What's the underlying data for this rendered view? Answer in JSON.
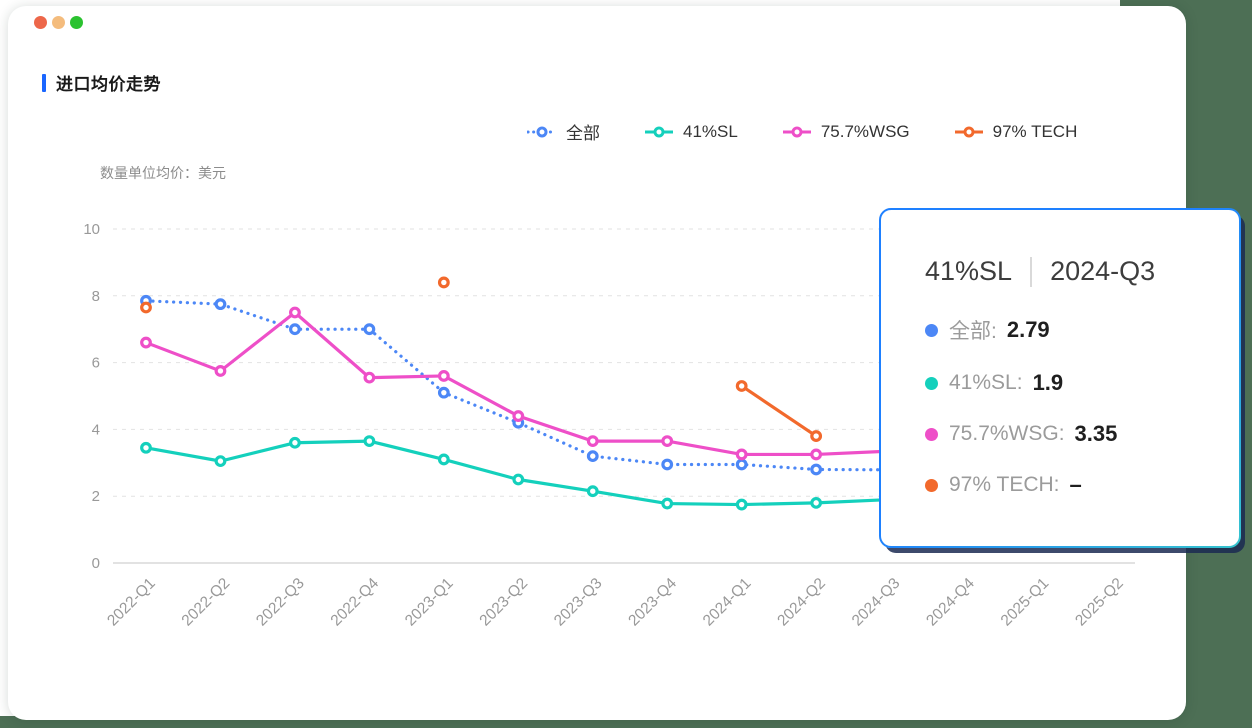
{
  "window": {
    "dot_colors": [
      "#ED674A",
      "#F4BC7D",
      "#2BC230"
    ]
  },
  "page": {
    "desktop_background": "#4D6F55",
    "card_background": "#FFFFFF"
  },
  "header": {
    "title": "进口均价走势",
    "accent_color": "#1A66FF"
  },
  "unit_label": "数量单位均价：美元",
  "chart_data": {
    "type": "line",
    "title": "进口均价走势",
    "unit": "数量单位均价：美元 (USD)",
    "categories": [
      "2022-Q1",
      "2022-Q2",
      "2022-Q3",
      "2022-Q4",
      "2023-Q1",
      "2023-Q2",
      "2023-Q3",
      "2023-Q4",
      "2024-Q1",
      "2024-Q2",
      "2024-Q3",
      "2024-Q4",
      "2025-Q1",
      "2025-Q2"
    ],
    "series": [
      {
        "name": "全部",
        "color": "#4C87F6",
        "line_style": "dotted",
        "values": [
          7.85,
          7.75,
          7.0,
          7.0,
          5.1,
          4.2,
          3.2,
          2.95,
          2.95,
          2.8,
          2.79,
          null,
          null,
          null
        ]
      },
      {
        "name": "41%SL",
        "color": "#14D0BC",
        "line_style": "solid",
        "values": [
          3.45,
          3.05,
          3.6,
          3.65,
          3.1,
          2.5,
          2.15,
          1.78,
          1.75,
          1.8,
          1.9,
          null,
          null,
          null
        ]
      },
      {
        "name": "75.7%WSG",
        "color": "#EE4FC8",
        "line_style": "solid",
        "values": [
          6.6,
          5.75,
          7.5,
          5.55,
          5.6,
          4.4,
          3.65,
          3.65,
          3.25,
          3.25,
          3.35,
          null,
          null,
          null
        ]
      },
      {
        "name": "97% TECH",
        "color": "#F2692C",
        "line_style": "solid",
        "values": [
          7.65,
          null,
          null,
          null,
          8.4,
          null,
          null,
          null,
          5.3,
          3.8,
          null,
          null,
          null,
          null
        ]
      }
    ],
    "ylim": [
      0,
      10
    ],
    "ytick_interval": 2,
    "yticks": [
      0,
      2,
      4,
      6,
      8,
      10
    ],
    "grid": "horizontal dashed",
    "legend_position": "top-right",
    "axis_text_color": "#999999",
    "gridline_color": "#E2E2E2"
  },
  "tooltip": {
    "series_title": "41%SL",
    "period": "2024-Q3",
    "border_color": "#1E80FF",
    "rows": [
      {
        "label": "全部:",
        "value": "2.79",
        "color": "#4C87F6"
      },
      {
        "label": "41%SL:",
        "value": "1.9",
        "color": "#14D0BC"
      },
      {
        "label": "75.7%WSG:",
        "value": "3.35",
        "color": "#EE4FC8"
      },
      {
        "label": "97% TECH:",
        "value": "–",
        "color": "#F2692C"
      }
    ]
  }
}
